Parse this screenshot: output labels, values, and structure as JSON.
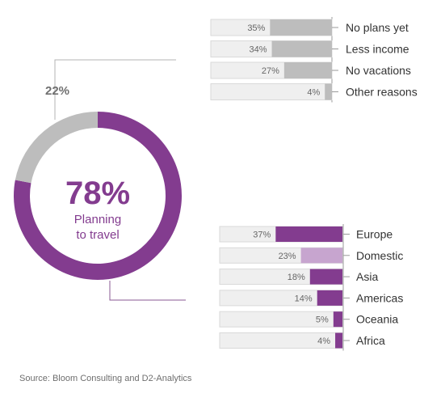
{
  "colors": {
    "purple": "#833c8f",
    "light_purple": "#c7a5cf",
    "gray": "#bdbdbd",
    "track": "#efefef",
    "track_border": "#d9d9d9",
    "text": "#555555",
    "label_text": "#333333",
    "leader": "#b3b3b3"
  },
  "chart_data": [
    {
      "type": "pie",
      "variant": "donut",
      "center_value": "78%",
      "center_label_line1": "Planning",
      "center_label_line2": "to travel",
      "outside_label": "22%",
      "slices": [
        {
          "name": "Planning to travel",
          "value": 78,
          "color": "#833c8f"
        },
        {
          "name": "Not planning",
          "value": 22,
          "color": "#bdbdbd"
        }
      ]
    },
    {
      "type": "bar",
      "orientation": "horizontal",
      "categories": [
        "No plans yet",
        "Less income",
        "No vacations",
        "Other reasons"
      ],
      "values": [
        35,
        34,
        27,
        4
      ],
      "value_labels": [
        "35%",
        "34%",
        "27%",
        "4%"
      ],
      "color": "#bdbdbd"
    },
    {
      "type": "bar",
      "orientation": "horizontal",
      "categories": [
        "Europe",
        "Domestic",
        "Asia",
        "Americas",
        "Oceania",
        "Africa"
      ],
      "values": [
        37,
        23,
        18,
        14,
        5,
        4
      ],
      "value_labels": [
        "37%",
        "23%",
        "18%",
        "14%",
        "5%",
        "4%"
      ],
      "colors": [
        "#833c8f",
        "#c7a5cf",
        "#833c8f",
        "#833c8f",
        "#833c8f",
        "#833c8f"
      ]
    }
  ],
  "source": "Source: Bloom Consulting and D2-Analytics"
}
